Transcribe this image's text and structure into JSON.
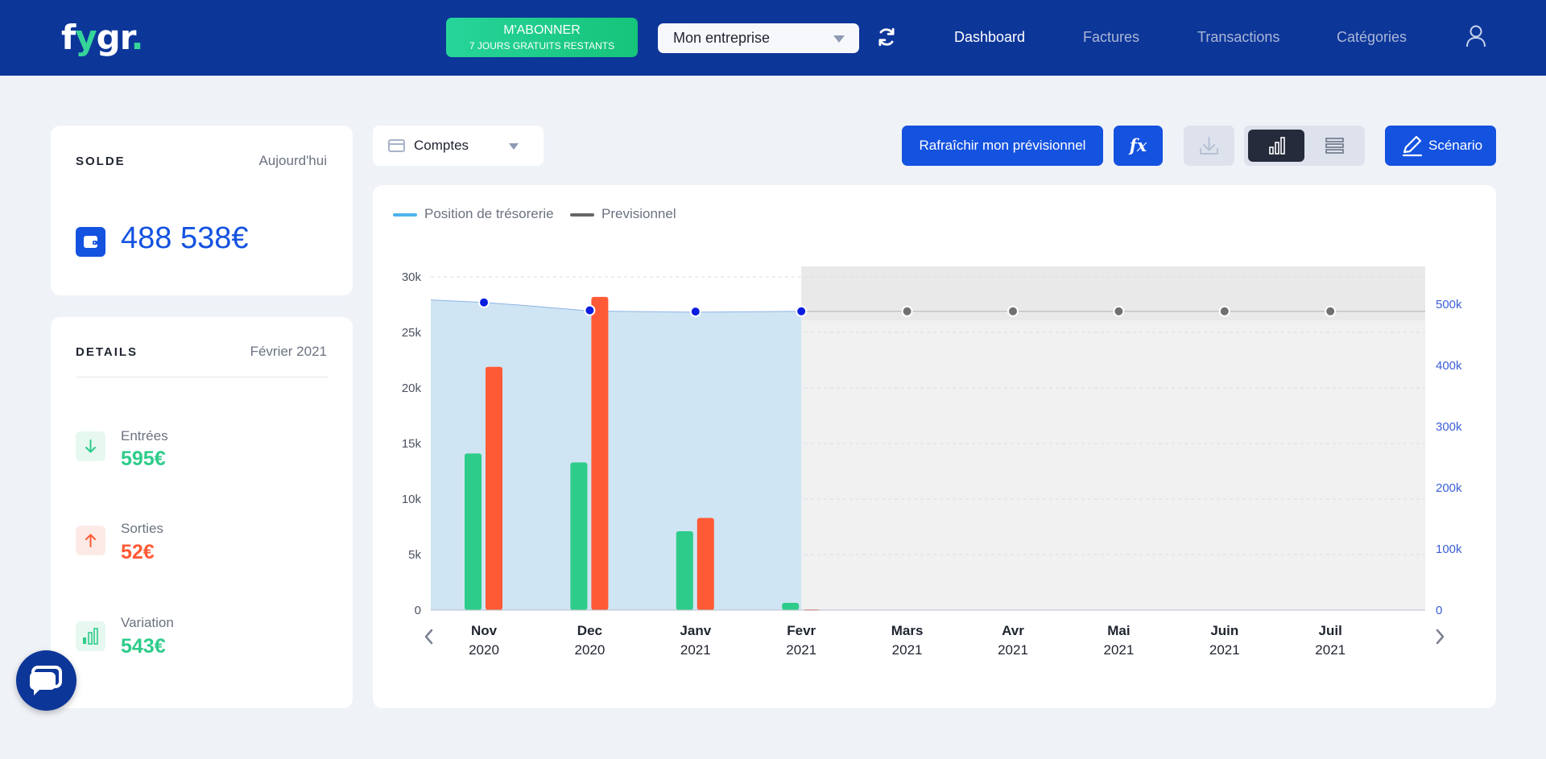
{
  "header": {
    "logo_prefix": "f",
    "logo_accent": "y",
    "logo_suffix": "gr",
    "logo_dot": ".",
    "subscribe_label": "M'ABONNER",
    "subscribe_sub": "7 JOURS GRATUITS RESTANTS",
    "company_select": "Mon entreprise",
    "nav": [
      "Dashboard",
      "Factures",
      "Transactions",
      "Catégories"
    ],
    "active_nav": "Dashboard"
  },
  "solde": {
    "title": "SOLDE",
    "date": "Aujourd'hui",
    "amount": "488 538€"
  },
  "details": {
    "title": "DETAILS",
    "period": "Février 2021",
    "entrees_label": "Entrées",
    "entrees_value": "595€",
    "sorties_label": "Sorties",
    "sorties_value": "52€",
    "variation_label": "Variation",
    "variation_value": "543€"
  },
  "toolbar": {
    "accounts_select": "Comptes",
    "refresh_forecast": "Rafraîchir mon prévisionnel",
    "formula_label": "fx",
    "scenario": "Scénario"
  },
  "colors": {
    "brand": "#0d3699",
    "accent_blue": "#1452e0",
    "green": "#2ecc8a",
    "orange": "#ff5a36",
    "area": "#cfe5f3"
  },
  "chart_data": {
    "type": "bar",
    "legend": [
      "Position de trésorerie",
      "Previsionnel"
    ],
    "legend_colors": [
      "#4db3ef",
      "#666666"
    ],
    "categories": [
      "Nov",
      "Dec",
      "Janv",
      "Fevr",
      "Mars",
      "Avr",
      "Mai",
      "Juin",
      "Juil"
    ],
    "years": [
      "2020",
      "2020",
      "2021",
      "2021",
      "2021",
      "2021",
      "2021",
      "2021",
      "2021"
    ],
    "series": [
      {
        "values": [
          14100,
          13300,
          7100,
          650,
          0,
          0,
          0,
          0,
          0
        ],
        "color": "#2ecc8a"
      },
      {
        "values": [
          21900,
          28200,
          8300,
          60,
          0,
          0,
          0,
          0,
          0
        ],
        "color": "#ff5a36"
      }
    ],
    "balance_points": [
      503000,
      490000,
      488000,
      488500,
      488500,
      488500,
      488500,
      488500,
      488500
    ],
    "balance_area": [
      507000,
      503000,
      497000,
      489000,
      487000,
      488000,
      488500
    ],
    "forecast_start_index": 4,
    "left_axis": {
      "ticks": [
        "0",
        "5k",
        "10k",
        "15k",
        "20k",
        "25k",
        "30k"
      ],
      "max": 30000
    },
    "right_axis": {
      "ticks": [
        "0",
        "100k",
        "200k",
        "300k",
        "400k",
        "500k"
      ],
      "max": 545000
    }
  }
}
